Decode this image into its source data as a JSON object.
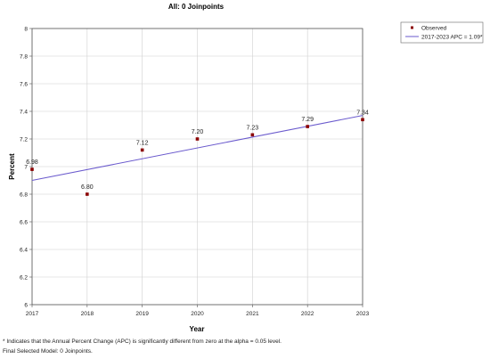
{
  "chart_data": {
    "type": "scatter",
    "title": "All: 0 Joinpoints",
    "xlabel": "Year",
    "ylabel": "Percent",
    "xlim": [
      2017,
      2023
    ],
    "ylim": [
      6,
      8
    ],
    "x_ticks": [
      "2017",
      "2018",
      "2019",
      "2020",
      "2021",
      "2022",
      "2023"
    ],
    "y_ticks": [
      "6",
      "6.2",
      "6.4",
      "6.6",
      "6.8",
      "7",
      "7.2",
      "7.4",
      "7.6",
      "7.8",
      "8"
    ],
    "grid": true,
    "legend_position": "top-right",
    "series": [
      {
        "name": "Observed",
        "kind": "points",
        "color": "#8b0000",
        "x": [
          2017,
          2018,
          2019,
          2020,
          2021,
          2022,
          2023
        ],
        "y": [
          6.98,
          6.8,
          7.12,
          7.2,
          7.23,
          7.29,
          7.34
        ],
        "labels": [
          "6.98",
          "6.80",
          "7.12",
          "7.20",
          "7.23",
          "7.29",
          "7.34"
        ]
      },
      {
        "name": "2017-2023 APC  =  1.09*",
        "kind": "line",
        "color": "#6a5acd",
        "x": [
          2017,
          2023
        ],
        "y": [
          6.9,
          7.37
        ]
      }
    ]
  },
  "footnotes": [
    "* Indicates that the Annual Percent Change (APC) is significantly different from zero at the alpha = 0.05 level.",
    "Final Selected Model: 0 Joinpoints."
  ]
}
